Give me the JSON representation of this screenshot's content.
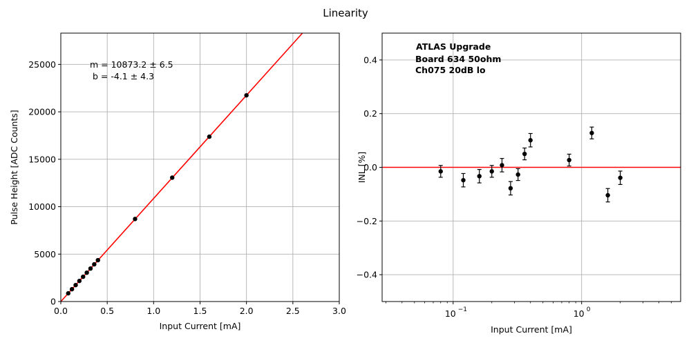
{
  "suptitle": "Linearity",
  "chart_data": [
    {
      "type": "scatter",
      "xlabel": "Input Current [mA]",
      "ylabel": "Pulse Height [ADC Counts]",
      "xlim": [
        0,
        3
      ],
      "ylim": [
        0,
        28300
      ],
      "xticks": [
        0,
        0.5,
        1.0,
        1.5,
        2.0,
        2.5,
        3.0
      ],
      "xtick_labels": [
        "0.0",
        "0.5",
        "1.0",
        "1.5",
        "2.0",
        "2.5",
        "3.0"
      ],
      "yticks": [
        0,
        5000,
        10000,
        15000,
        20000,
        25000
      ],
      "ytick_labels": [
        "0",
        "5000",
        "10000",
        "15000",
        "20000",
        "25000"
      ],
      "grid": true,
      "annotation": [
        "m = 10873.2 ± 6.5",
        "b = -4.1 ± 4.3"
      ],
      "fit": {
        "slope": 10873.2,
        "intercept": -4.1,
        "color": "#ff0000"
      },
      "series": [
        {
          "color": "#000000",
          "x": [
            0.08,
            0.12,
            0.16,
            0.2,
            0.24,
            0.28,
            0.32,
            0.36,
            0.4,
            0.8,
            1.2,
            1.6,
            2.0
          ],
          "y": [
            866,
            1300,
            1736,
            2171,
            2611,
            3041,
            3478,
            3923,
            4360,
            8702,
            13060,
            17380,
            21740
          ]
        }
      ]
    },
    {
      "type": "scatter",
      "xlabel": "Input Current [mA]",
      "ylabel": "INL [%]",
      "xscale": "log",
      "xlim": [
        0.028,
        5.9
      ],
      "ylim": [
        -0.5,
        0.5
      ],
      "xticks": [
        0.1,
        1
      ],
      "xtick_labels": [
        "10",
        "10"
      ],
      "xtick_exponents": [
        "−1",
        "0"
      ],
      "yticks": [
        -0.4,
        -0.2,
        0.0,
        0.2,
        0.4
      ],
      "ytick_labels": [
        "−0.4",
        "−0.2",
        "0.0",
        "0.2",
        "0.4"
      ],
      "grid": true,
      "reference_line": {
        "y": 0.0,
        "color": "#ff0000"
      },
      "annotation": [
        "ATLAS Upgrade",
        "Board 634 50ohm",
        "Ch075 20dB lo"
      ],
      "series": [
        {
          "color": "#000000",
          "x": [
            0.08,
            0.12,
            0.16,
            0.2,
            0.24,
            0.28,
            0.32,
            0.36,
            0.4,
            0.8,
            1.2,
            1.6,
            2.0
          ],
          "y": [
            -0.015,
            -0.048,
            -0.033,
            -0.015,
            0.008,
            -0.078,
            -0.027,
            0.05,
            0.101,
            0.027,
            0.128,
            -0.104,
            -0.039
          ],
          "yerr": [
            0.022,
            0.025,
            0.025,
            0.022,
            0.025,
            0.025,
            0.022,
            0.022,
            0.025,
            0.022,
            0.022,
            0.025,
            0.025
          ]
        }
      ]
    }
  ]
}
